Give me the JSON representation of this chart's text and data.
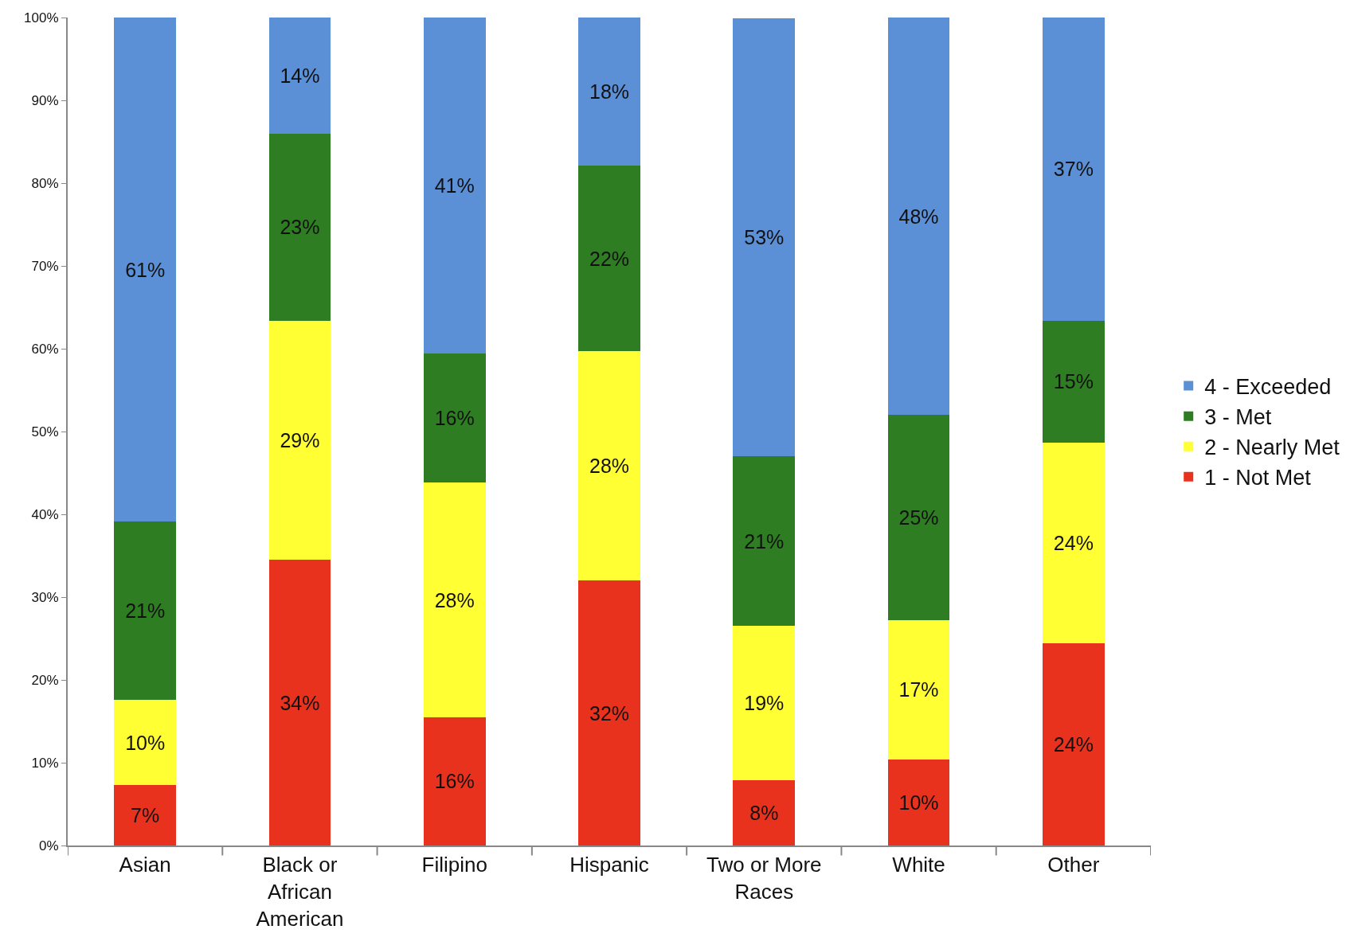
{
  "chart_data": {
    "type": "bar",
    "stacked": true,
    "categories": [
      "Asian",
      "Black or African American",
      "Filipino",
      "Hispanic",
      "Two or More Races",
      "White",
      "Other"
    ],
    "series": [
      {
        "name": "1 - Not Met",
        "color": "#e8321e",
        "values": [
          7.3,
          34.5,
          15.5,
          32.0,
          7.9,
          10.4,
          24.4
        ],
        "value_labels": [
          "7%",
          "34%",
          "16%",
          "32%",
          "8%",
          "10%",
          "24%"
        ]
      },
      {
        "name": "2 - Nearly Met",
        "color": "#ffff33",
        "values": [
          10.3,
          28.9,
          28.3,
          27.7,
          18.6,
          16.8,
          24.3
        ],
        "value_labels": [
          "10%",
          "29%",
          "28%",
          "28%",
          "19%",
          "17%",
          "24%"
        ]
      },
      {
        "name": "3 - Met",
        "color": "#2e7d23",
        "values": [
          21.5,
          22.6,
          15.6,
          22.4,
          20.5,
          24.8,
          14.7
        ],
        "value_labels": [
          "21%",
          "23%",
          "16%",
          "22%",
          "21%",
          "25%",
          "15%"
        ]
      },
      {
        "name": "4 - Exceeded",
        "color": "#5b8fd6",
        "values": [
          60.9,
          14.0,
          40.6,
          17.9,
          52.9,
          48.0,
          36.6
        ],
        "value_labels": [
          "61%",
          "14%",
          "41%",
          "18%",
          "53%",
          "48%",
          "37%"
        ]
      }
    ],
    "ylim": [
      0,
      100
    ],
    "yticks": [
      {
        "value": 0,
        "label": "0%"
      },
      {
        "value": 10,
        "label": "10%"
      },
      {
        "value": 20,
        "label": "20%"
      },
      {
        "value": 30,
        "label": "30%"
      },
      {
        "value": 40,
        "label": "40%"
      },
      {
        "value": 50,
        "label": "50%"
      },
      {
        "value": 60,
        "label": "60%"
      },
      {
        "value": 70,
        "label": "70%"
      },
      {
        "value": 80,
        "label": "80%"
      },
      {
        "value": 90,
        "label": "90%"
      },
      {
        "value": 100,
        "label": "100%"
      }
    ],
    "grid": false,
    "legend": "right"
  }
}
